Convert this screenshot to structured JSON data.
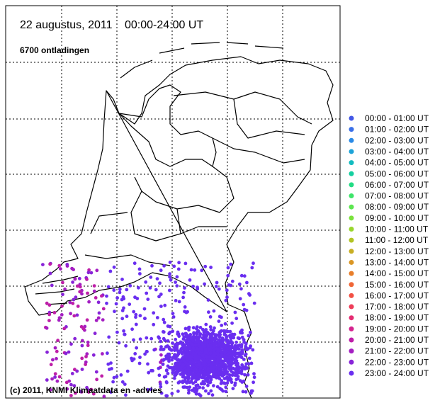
{
  "header": {
    "date": "22 augustus, 2011",
    "period": "00:00-24:00 UT",
    "count": "6700 ontladingen"
  },
  "legend": {
    "items": [
      {
        "label": "00:00 - 01:00 UT",
        "color": "#4257e6"
      },
      {
        "label": "01:00 - 02:00 UT",
        "color": "#3a6fe8"
      },
      {
        "label": "02:00 - 03:00 UT",
        "color": "#2a8ae6"
      },
      {
        "label": "03:00 - 04:00 UT",
        "color": "#1ca3d8"
      },
      {
        "label": "04:00 - 05:00 UT",
        "color": "#12bcc0"
      },
      {
        "label": "05:00 - 06:00 UT",
        "color": "#14cfa0"
      },
      {
        "label": "06:00 - 07:00 UT",
        "color": "#22dc84"
      },
      {
        "label": "07:00 - 08:00 UT",
        "color": "#3ee46a"
      },
      {
        "label": "08:00 - 09:00 UT",
        "color": "#5ce650"
      },
      {
        "label": "09:00 - 10:00 UT",
        "color": "#7ae23c"
      },
      {
        "label": "10:00 - 11:00 UT",
        "color": "#98d62c"
      },
      {
        "label": "11:00 - 12:00 UT",
        "color": "#b2c424"
      },
      {
        "label": "12:00 - 13:00 UT",
        "color": "#c8ae22"
      },
      {
        "label": "13:00 - 14:00 UT",
        "color": "#da9624"
      },
      {
        "label": "14:00 - 15:00 UT",
        "color": "#e87e2a"
      },
      {
        "label": "15:00 - 16:00 UT",
        "color": "#f06636"
      },
      {
        "label": "16:00 - 17:00 UT",
        "color": "#f25044"
      },
      {
        "label": "17:00 - 18:00 UT",
        "color": "#ee3c58"
      },
      {
        "label": "18:00 - 19:00 UT",
        "color": "#e42c72"
      },
      {
        "label": "19:00 - 20:00 UT",
        "color": "#d4228e"
      },
      {
        "label": "20:00 - 21:00 UT",
        "color": "#be1ea8"
      },
      {
        "label": "21:00 - 22:00 UT",
        "color": "#a41ec2"
      },
      {
        "label": "22:00 - 23:00 UT",
        "color": "#8824d8"
      },
      {
        "label": "23:00 - 24:00 UT",
        "color": "#6a2ef0"
      }
    ]
  },
  "footer": {
    "copyright": "(c) 2011, KNMI Klimaatdata en -advies"
  }
}
